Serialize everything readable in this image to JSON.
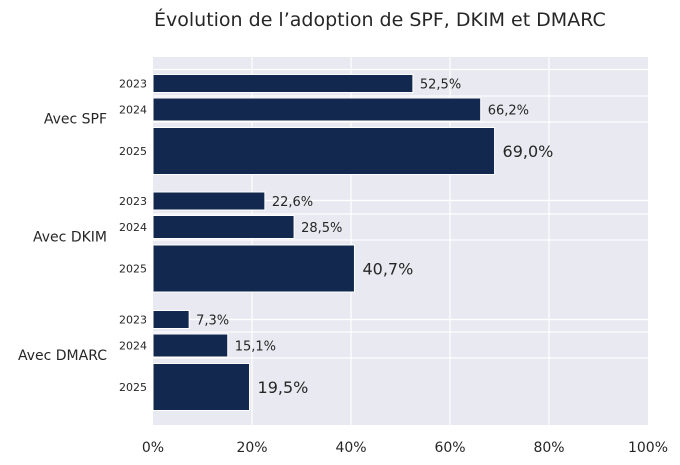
{
  "chart_data": {
    "type": "bar",
    "orientation": "horizontal",
    "title": "Évolution de l’adoption de SPF, DKIM et DMARC",
    "xlabel": "",
    "ylabel": "",
    "xlim": [
      0,
      100
    ],
    "x_ticks": [
      "0%",
      "20%",
      "40%",
      "60%",
      "80%",
      "100%"
    ],
    "grid": true,
    "groups": [
      {
        "label": "Avec SPF",
        "bars": [
          {
            "year": "2023",
            "value": 52.5,
            "label": "52,5%"
          },
          {
            "year": "2024",
            "value": 66.2,
            "label": "66,2%"
          },
          {
            "year": "2025",
            "value": 69.0,
            "label": "69,0%"
          }
        ]
      },
      {
        "label": "Avec DKIM",
        "bars": [
          {
            "year": "2023",
            "value": 22.6,
            "label": "22,6%"
          },
          {
            "year": "2024",
            "value": 28.5,
            "label": "28,5%"
          },
          {
            "year": "2025",
            "value": 40.7,
            "label": "40,7%"
          }
        ]
      },
      {
        "label": "Avec DMARC",
        "bars": [
          {
            "year": "2023",
            "value": 7.3,
            "label": "7,3%"
          },
          {
            "year": "2024",
            "value": 15.1,
            "label": "15,1%"
          },
          {
            "year": "2025",
            "value": 19.5,
            "label": "19,5%"
          }
        ]
      }
    ],
    "colors": {
      "bar": "#13284f",
      "background": "#e9e9f1",
      "grid": "#ffffff"
    }
  }
}
